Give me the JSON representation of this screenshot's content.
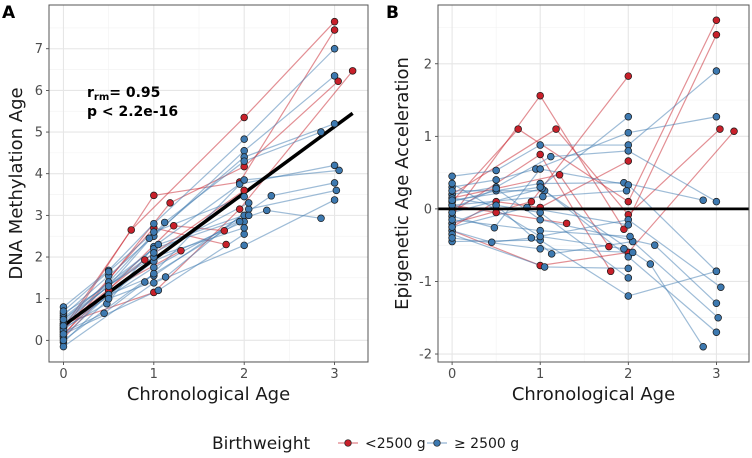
{
  "legend": {
    "title": "Birthweight",
    "entries": [
      {
        "label": "<2500 g",
        "color": "#c8202a"
      },
      {
        "label": "≥ 2500 g",
        "color": "#3d79b0"
      }
    ]
  },
  "chart_data": [
    {
      "panel_label": "A",
      "type": "line",
      "xlabel": "Chronological Age",
      "ylabel": "DNA Methylation Age",
      "xlim": [
        -0.16,
        3.37
      ],
      "ylim": [
        -0.52,
        8.05
      ],
      "xticks": [
        "0",
        "1",
        "2",
        "3"
      ],
      "yticks": [
        "0",
        "1",
        "2",
        "3",
        "4",
        "5",
        "6",
        "7"
      ],
      "grid": true,
      "annotation": {
        "r_label": "r",
        "r_sub": "rm",
        "r_value": "= 0.95",
        "p_text": "p < 2.2e-16"
      },
      "fit_line": {
        "x": [
          0,
          3.2
        ],
        "y": [
          0.35,
          5.45
        ]
      },
      "subjects": [
        {
          "group": "<2500 g",
          "points": [
            [
              0,
              0.3
            ],
            [
              0.75,
              2.65
            ],
            [
              2,
              5.35
            ],
            [
              3,
              7.65
            ]
          ]
        },
        {
          "group": "<2500 g",
          "points": [
            [
              0,
              0.2
            ],
            [
              1,
              3.48
            ],
            [
              1.95,
              3.8
            ],
            [
              3,
              7.45
            ]
          ]
        },
        {
          "group": "<2500 g",
          "points": [
            [
              0,
              0.1
            ],
            [
              1.18,
              3.3
            ],
            [
              2,
              4.17
            ],
            [
              3.04,
              6.22
            ]
          ]
        },
        {
          "group": "<2500 g",
          "points": [
            [
              0,
              0.4
            ],
            [
              1,
              1.15
            ],
            [
              1.95,
              3.15
            ],
            [
              3.2,
              6.47
            ]
          ]
        },
        {
          "group": "<2500 g",
          "points": [
            [
              0,
              0.25
            ],
            [
              1,
              2.7
            ],
            [
              1.8,
              2.3
            ]
          ]
        },
        {
          "group": "<2500 g",
          "points": [
            [
              0,
              0.15
            ],
            [
              1.22,
              2.75
            ],
            [
              1.78,
              2.63
            ]
          ]
        },
        {
          "group": "<2500 g",
          "points": [
            [
              0,
              0.35
            ],
            [
              0.9,
              1.93
            ],
            [
              2,
              3.6
            ]
          ]
        },
        {
          "group": "<2500 g",
          "points": [
            [
              0,
              0.05
            ],
            [
              0.5,
              1.2
            ],
            [
              1.3,
              2.15
            ]
          ]
        },
        {
          "group": "≥ 2500 g",
          "points": [
            [
              0,
              0.8
            ],
            [
              0.5,
              1.68
            ],
            [
              1,
              2.8
            ],
            [
              2,
              4.83
            ],
            [
              3,
              7.0
            ]
          ]
        },
        {
          "group": "≥ 2500 g",
          "points": [
            [
              0,
              0.6
            ],
            [
              0.5,
              1.55
            ],
            [
              1,
              2.5
            ],
            [
              2,
              4.55
            ],
            [
              3,
              6.35
            ]
          ]
        },
        {
          "group": "≥ 2500 g",
          "points": [
            [
              0,
              0.5
            ],
            [
              0.5,
              1.4
            ],
            [
              0.95,
              2.45
            ],
            [
              2,
              4.4
            ],
            [
              3,
              5.2
            ]
          ]
        },
        {
          "group": "≥ 2500 g",
          "points": [
            [
              0,
              0.45
            ],
            [
              0.5,
              1.3
            ],
            [
              1.12,
              2.83
            ],
            [
              2,
              4.3
            ],
            [
              2.85,
              5.0
            ]
          ]
        },
        {
          "group": "≥ 2500 g",
          "points": [
            [
              0,
              0.3
            ],
            [
              0.48,
              0.88
            ],
            [
              1,
              2.25
            ],
            [
              1.95,
              3.75
            ],
            [
              3,
              4.2
            ]
          ]
        },
        {
          "group": "≥ 2500 g",
          "points": [
            [
              0,
              0.2
            ],
            [
              0.45,
              0.65
            ],
            [
              0.9,
              1.4
            ],
            [
              2,
              3.85
            ],
            [
              3.05,
              4.08
            ]
          ]
        },
        {
          "group": "≥ 2500 g",
          "points": [
            [
              0,
              0.1
            ],
            [
              0.5,
              1.1
            ],
            [
              1,
              1.55
            ],
            [
              2.3,
              3.47
            ],
            [
              3,
              3.78
            ]
          ]
        },
        {
          "group": "≥ 2500 g",
          "points": [
            [
              0,
              -0.05
            ],
            [
              0.5,
              1.0
            ],
            [
              1.13,
              1.52
            ],
            [
              2.05,
              3.15
            ],
            [
              3.02,
              3.6
            ]
          ]
        },
        {
          "group": "≥ 2500 g",
          "points": [
            [
              0,
              -0.15
            ],
            [
              1,
              1.38
            ],
            [
              2,
              2.28
            ],
            [
              3,
              3.37
            ]
          ]
        },
        {
          "group": "≥ 2500 g",
          "points": [
            [
              0,
              0.55
            ],
            [
              1,
              2.2
            ],
            [
              2.25,
              3.12
            ],
            [
              2.85,
              2.93
            ]
          ]
        },
        {
          "group": "≥ 2500 g",
          "points": [
            [
              0,
              0.4
            ],
            [
              1.05,
              2.3
            ],
            [
              2,
              3.0
            ]
          ]
        },
        {
          "group": "≥ 2500 g",
          "points": [
            [
              0,
              0.25
            ],
            [
              1,
              1.9
            ],
            [
              2,
              2.85
            ]
          ]
        },
        {
          "group": "≥ 2500 g",
          "points": [
            [
              0,
              0.35
            ],
            [
              1,
              1.75
            ],
            [
              2.05,
              3.0
            ]
          ]
        },
        {
          "group": "≥ 2500 g",
          "points": [
            [
              0,
              0.15
            ],
            [
              1.05,
              1.2
            ],
            [
              2,
              2.55
            ]
          ]
        },
        {
          "group": "≥ 2500 g",
          "points": [
            [
              0,
              0.65
            ],
            [
              1,
              2.0
            ],
            [
              2,
              2.7
            ]
          ]
        },
        {
          "group": "≥ 2500 g",
          "points": [
            [
              0,
              0.0
            ],
            [
              1,
              1.6
            ],
            [
              1.95,
              2.85
            ]
          ]
        },
        {
          "group": "≥ 2500 g",
          "points": [
            [
              0,
              0.5
            ],
            [
              1,
              2.1
            ],
            [
              2.05,
              3.3
            ]
          ]
        },
        {
          "group": "≥ 2500 g",
          "points": [
            [
              0,
              0.7
            ],
            [
              0.5,
              1.65
            ],
            [
              1,
              2.6
            ],
            [
              2,
              3.45
            ]
          ]
        }
      ]
    },
    {
      "panel_label": "B",
      "type": "line",
      "xlabel": "Chronological Age",
      "ylabel": "Epigenetic Age Acceleration",
      "xlim": [
        -0.16,
        3.37
      ],
      "ylim": [
        -2.11,
        2.81
      ],
      "xticks": [
        "0",
        "1",
        "2",
        "3"
      ],
      "yticks": [
        "-2",
        "-1",
        "0",
        "1",
        "2"
      ],
      "grid": true,
      "reference_line_y": 0,
      "subjects": [
        {
          "group": "<2500 g",
          "points": [
            [
              0,
              0.1
            ],
            [
              0.75,
              1.1
            ],
            [
              2,
              0.1
            ],
            [
              3,
              2.6
            ]
          ]
        },
        {
          "group": "<2500 g",
          "points": [
            [
              0,
              -0.1
            ],
            [
              1,
              1.56
            ],
            [
              1.95,
              -0.28
            ],
            [
              3,
              2.4
            ]
          ]
        },
        {
          "group": "<2500 g",
          "points": [
            [
              0,
              0.2
            ],
            [
              1.18,
              1.1
            ],
            [
              2,
              -0.08
            ],
            [
              3.04,
              1.1
            ]
          ]
        },
        {
          "group": "<2500 g",
          "points": [
            [
              0,
              -0.3
            ],
            [
              1,
              -0.78
            ],
            [
              2,
              -0.6
            ],
            [
              3.2,
              1.07
            ]
          ]
        },
        {
          "group": "<2500 g",
          "points": [
            [
              0,
              -0.05
            ],
            [
              1,
              0.75
            ],
            [
              1.8,
              -0.86
            ]
          ]
        },
        {
          "group": "<2500 g",
          "points": [
            [
              0,
              0.15
            ],
            [
              1.22,
              0.47
            ],
            [
              1.78,
              -0.52
            ]
          ]
        },
        {
          "group": "<2500 g",
          "points": [
            [
              0,
              -0.2
            ],
            [
              0.9,
              0.1
            ],
            [
              2,
              1.83
            ]
          ]
        },
        {
          "group": "<2500 g",
          "points": [
            [
              0,
              -0.25
            ],
            [
              0.5,
              0.1
            ],
            [
              1,
              0.02
            ],
            [
              2,
              0.66
            ]
          ]
        },
        {
          "group": "<2500 g",
          "points": [
            [
              0,
              0.05
            ],
            [
              0.5,
              -0.05
            ],
            [
              1.3,
              -0.2
            ]
          ]
        },
        {
          "group": "≥ 2500 g",
          "points": [
            [
              0,
              0.45
            ],
            [
              0.5,
              0.53
            ],
            [
              1,
              0.88
            ],
            [
              2,
              0.88
            ],
            [
              3,
              1.9
            ]
          ]
        },
        {
          "group": "≥ 2500 g",
          "points": [
            [
              0,
              0.3
            ],
            [
              0.5,
              0.4
            ],
            [
              0.95,
              0.55
            ],
            [
              2,
              1.05
            ],
            [
              3,
              1.27
            ]
          ]
        },
        {
          "group": "≥ 2500 g",
          "points": [
            [
              0,
              0.2
            ],
            [
              0.5,
              0.3
            ],
            [
              1.12,
              0.72
            ],
            [
              2,
              0.8
            ],
            [
              3,
              0.1
            ]
          ]
        },
        {
          "group": "≥ 2500 g",
          "points": [
            [
              0,
              0.1
            ],
            [
              0.5,
              0.25
            ],
            [
              1,
              0.35
            ],
            [
              1.95,
              0.36
            ],
            [
              2.85,
              0.12
            ]
          ]
        },
        {
          "group": "≥ 2500 g",
          "points": [
            [
              0,
              -0.1
            ],
            [
              0.48,
              -0.26
            ],
            [
              1,
              0.55
            ],
            [
              2,
              0.33
            ],
            [
              3,
              -0.86
            ]
          ]
        },
        {
          "group": "≥ 2500 g",
          "points": [
            [
              0,
              -0.3
            ],
            [
              0.45,
              -0.46
            ],
            [
              0.9,
              -0.4
            ],
            [
              2,
              -0.15
            ],
            [
              3.05,
              -1.08
            ]
          ]
        },
        {
          "group": "≥ 2500 g",
          "points": [
            [
              0,
              0.0
            ],
            [
              0.5,
              0.28
            ],
            [
              1,
              -0.15
            ],
            [
              2.3,
              -0.5
            ],
            [
              3,
              -1.3
            ]
          ]
        },
        {
          "group": "≥ 2500 g",
          "points": [
            [
              0,
              -0.2
            ],
            [
              0.5,
              0.05
            ],
            [
              1.13,
              -0.62
            ],
            [
              2.05,
              -0.45
            ],
            [
              3.02,
              -1.5
            ]
          ]
        },
        {
          "group": "≥ 2500 g",
          "points": [
            [
              0,
              -0.45
            ],
            [
              1,
              -0.43
            ],
            [
              2,
              -1.2
            ],
            [
              3,
              -0.86
            ]
          ]
        },
        {
          "group": "≥ 2500 g",
          "points": [
            [
              0,
              0.25
            ],
            [
              1.05,
              0.25
            ],
            [
              2.25,
              -0.76
            ],
            [
              2.85,
              -1.9
            ]
          ]
        },
        {
          "group": "≥ 2500 g",
          "points": [
            [
              0,
              -0.05
            ],
            [
              1.02,
              0.28
            ],
            [
              2,
              -0.66
            ],
            [
              3,
              -1.7
            ]
          ]
        },
        {
          "group": "≥ 2500 g",
          "points": [
            [
              0,
              0.15
            ],
            [
              1,
              -0.05
            ],
            [
              2,
              -0.95
            ]
          ]
        },
        {
          "group": "≥ 2500 g",
          "points": [
            [
              0,
              -0.15
            ],
            [
              1,
              -0.3
            ],
            [
              2.02,
              -0.38
            ]
          ]
        },
        {
          "group": "≥ 2500 g",
          "points": [
            [
              0,
              -0.35
            ],
            [
              1.05,
              -0.8
            ],
            [
              2,
              -0.82
            ]
          ]
        },
        {
          "group": "≥ 2500 g",
          "points": [
            [
              0,
              0.05
            ],
            [
              1.03,
              0.17
            ],
            [
              1.98,
              0.25
            ]
          ]
        },
        {
          "group": "≥ 2500 g",
          "points": [
            [
              0,
              -0.25
            ],
            [
              0.85,
              0.02
            ],
            [
              2,
              -0.22
            ]
          ]
        },
        {
          "group": "≥ 2500 g",
          "points": [
            [
              0,
              0.35
            ],
            [
              1,
              -0.38
            ],
            [
              1.95,
              -0.55
            ]
          ]
        },
        {
          "group": "≥ 2500 g",
          "points": [
            [
              0,
              -0.4
            ],
            [
              1,
              -0.55
            ],
            [
              2.05,
              -0.6
            ]
          ]
        },
        {
          "group": "≥ 2500 g",
          "points": [
            [
              0,
              0.12
            ],
            [
              1,
              0.3
            ],
            [
              2,
              1.27
            ]
          ]
        }
      ]
    }
  ]
}
